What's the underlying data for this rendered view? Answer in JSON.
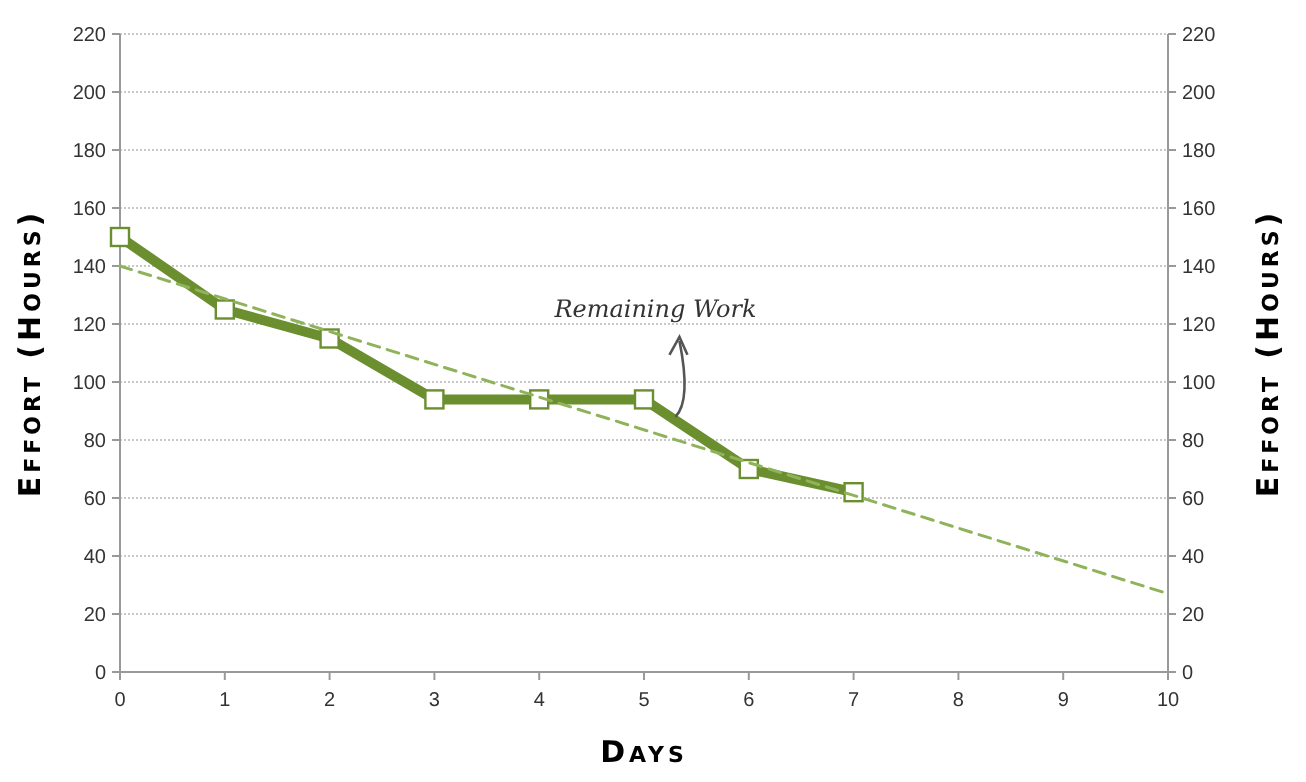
{
  "chart_data": {
    "type": "line",
    "xlabel": "Days",
    "ylabel": "Effort (Hours)",
    "y2label": "Effort (Hours)",
    "x": [
      0,
      1,
      2,
      3,
      4,
      5,
      6,
      7
    ],
    "series": [
      {
        "color": "#6b8e2f",
        "values": [
          150,
          125,
          115,
          94,
          94,
          94,
          70,
          62
        ],
        "marker": "square",
        "line_style": "solid"
      },
      {
        "type": "line",
        "color": "#8fb35a",
        "x": [
          0,
          10
        ],
        "values": [
          140,
          27
        ],
        "marker": "none",
        "line_style": "dashed"
      }
    ],
    "xlim": [
      0,
      10
    ],
    "xticks": [
      0,
      1,
      2,
      3,
      4,
      5,
      6,
      7,
      8,
      9,
      10
    ],
    "ylim": [
      0,
      220
    ],
    "yticks": [
      0,
      20,
      40,
      60,
      80,
      100,
      120,
      140,
      160,
      180,
      200,
      220
    ],
    "y2lim": [
      0,
      220
    ],
    "y2ticks": [
      0,
      20,
      40,
      60,
      80,
      100,
      120,
      140,
      160,
      180,
      200,
      220
    ],
    "grid": "y",
    "annotations": [
      {
        "text": "Remaining Work",
        "x": 5.3,
        "y": 88
      }
    ]
  }
}
